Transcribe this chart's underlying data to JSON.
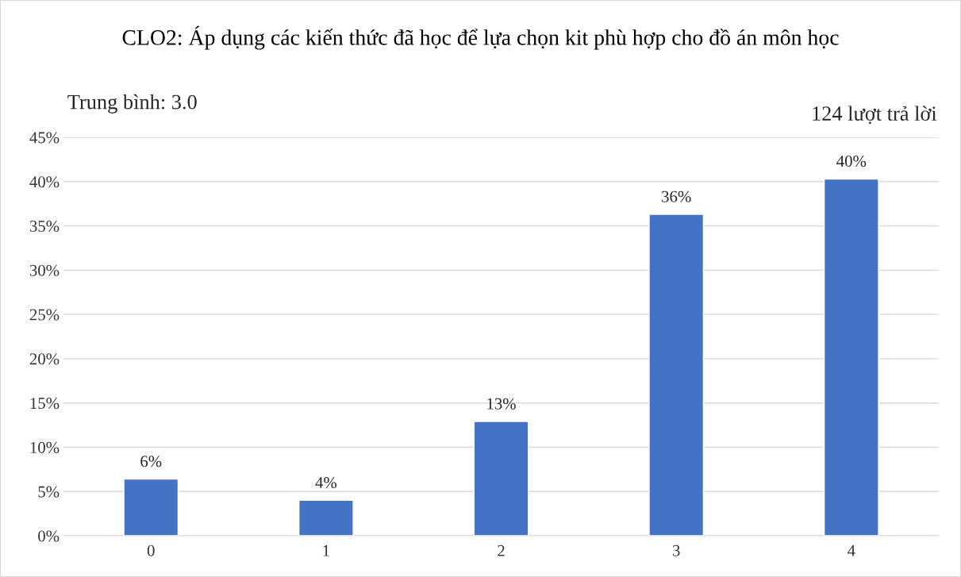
{
  "chart_data": {
    "type": "bar",
    "title": "CLO2: Áp dụng các kiến thức đã học để lựa chọn kit phù hợp cho đồ án môn học",
    "annotations": [
      "Trung bình: 3.0",
      "124 lượt trả lời"
    ],
    "categories": [
      "0",
      "1",
      "2",
      "3",
      "4"
    ],
    "values": [
      6.4,
      4.0,
      12.9,
      36.3,
      40.3
    ],
    "value_labels": [
      "6%",
      "4%",
      "13%",
      "36%",
      "40%"
    ],
    "color": "#4472c4",
    "ylim": [
      0,
      45
    ],
    "yticks": [
      {
        "value": 0,
        "label": "0%"
      },
      {
        "value": 5,
        "label": "5%"
      },
      {
        "value": 10,
        "label": "10%"
      },
      {
        "value": 15,
        "label": "15%"
      },
      {
        "value": 20,
        "label": "20%"
      },
      {
        "value": 25,
        "label": "25%"
      },
      {
        "value": 30,
        "label": "30%"
      },
      {
        "value": 35,
        "label": "35%"
      },
      {
        "value": 40,
        "label": "40%"
      },
      {
        "value": 45,
        "label": "45%"
      }
    ],
    "grid": "y",
    "legend": false
  }
}
